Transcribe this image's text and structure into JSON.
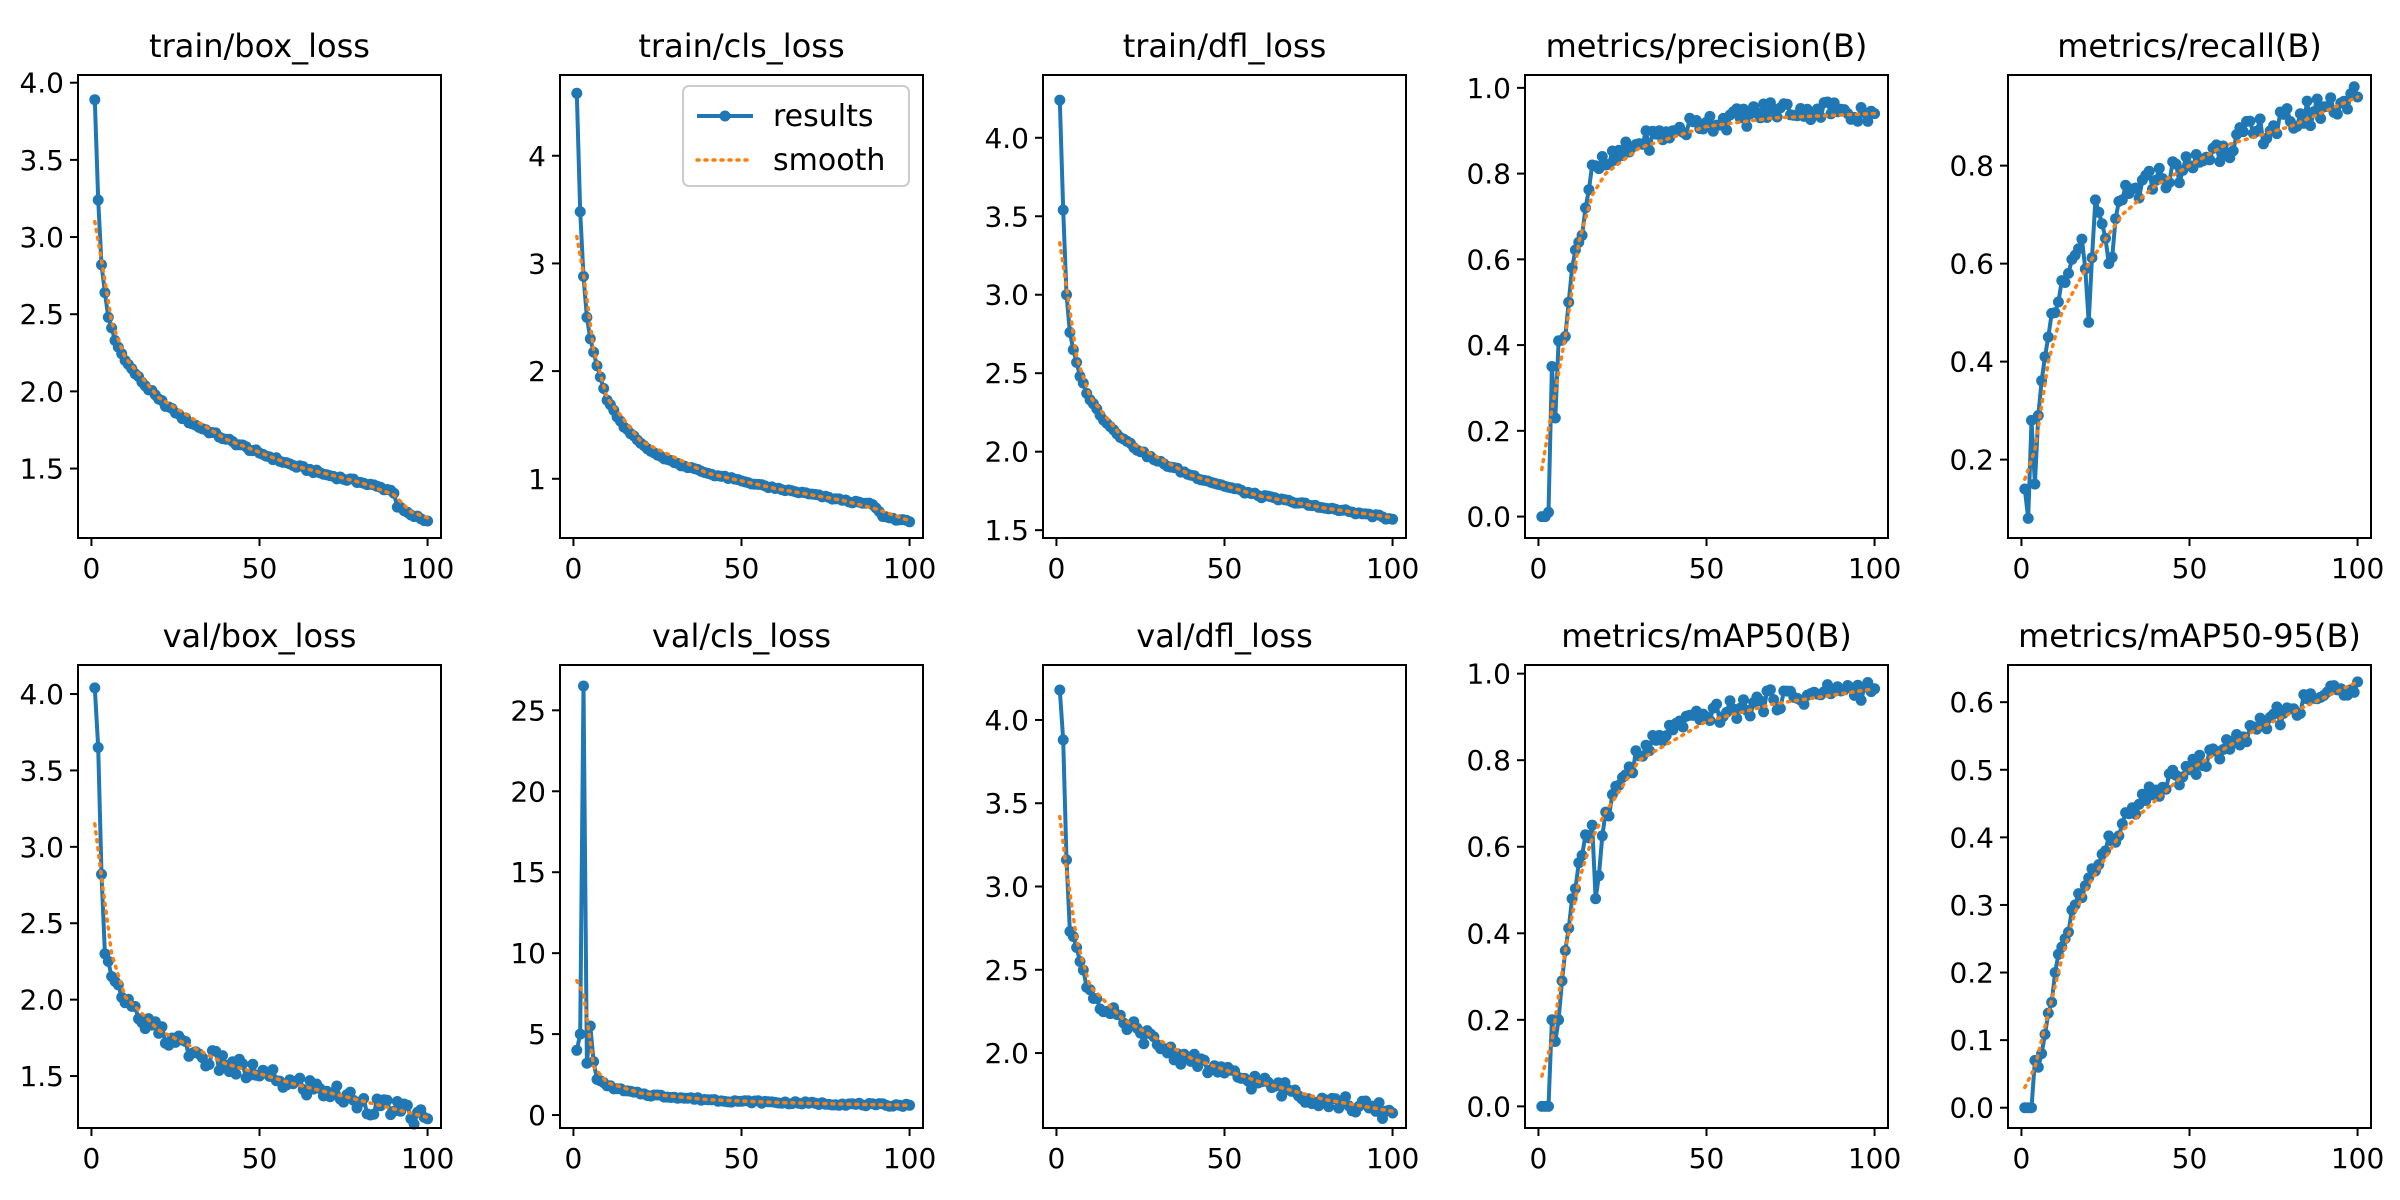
{
  "figure": {
    "legend": {
      "placement": "upper-right of panel 2",
      "entries": [
        "results",
        "smooth"
      ]
    },
    "colors": {
      "results": "#1f77b4",
      "smooth": "#ff7f0e"
    }
  },
  "chart_data": [
    {
      "type": "line",
      "title": "train/box_loss",
      "xlim": [
        -4,
        104
      ],
      "ylim": [
        1.05,
        4.05
      ],
      "xticks": [
        0,
        50,
        100
      ],
      "yticks": [
        1.5,
        2.0,
        2.5,
        3.0,
        3.5,
        4.0
      ],
      "ytick_labels": [
        "1.5",
        "2.0",
        "2.5",
        "3.0",
        "3.5",
        "4.0"
      ],
      "anchors": [
        [
          1,
          3.89
        ],
        [
          2,
          3.24
        ],
        [
          3,
          2.82
        ],
        [
          4,
          2.64
        ],
        [
          5,
          2.48
        ],
        [
          7,
          2.33
        ],
        [
          10,
          2.2
        ],
        [
          15,
          2.06
        ],
        [
          20,
          1.95
        ],
        [
          25,
          1.86
        ],
        [
          30,
          1.79
        ],
        [
          40,
          1.69
        ],
        [
          50,
          1.6
        ],
        [
          60,
          1.52
        ],
        [
          70,
          1.46
        ],
        [
          80,
          1.41
        ],
        [
          89,
          1.36
        ],
        [
          90,
          1.34
        ],
        [
          91,
          1.25
        ],
        [
          95,
          1.2
        ],
        [
          100,
          1.16
        ]
      ],
      "noise": 0.012,
      "smooth": [
        [
          1,
          3.1
        ],
        [
          3,
          2.85
        ],
        [
          6,
          2.45
        ],
        [
          10,
          2.22
        ],
        [
          20,
          1.96
        ],
        [
          40,
          1.69
        ],
        [
          60,
          1.52
        ],
        [
          80,
          1.41
        ],
        [
          90,
          1.33
        ],
        [
          95,
          1.22
        ],
        [
          100,
          1.18
        ]
      ]
    },
    {
      "type": "line",
      "title": "train/cls_loss",
      "xlim": [
        -4,
        104
      ],
      "ylim": [
        0.45,
        4.75
      ],
      "xticks": [
        0,
        50,
        100
      ],
      "yticks": [
        1,
        2,
        3,
        4
      ],
      "ytick_labels": [
        "1",
        "2",
        "3",
        "4"
      ],
      "anchors": [
        [
          1,
          4.58
        ],
        [
          2,
          3.48
        ],
        [
          3,
          2.88
        ],
        [
          4,
          2.5
        ],
        [
          5,
          2.3
        ],
        [
          7,
          2.05
        ],
        [
          10,
          1.73
        ],
        [
          15,
          1.48
        ],
        [
          20,
          1.33
        ],
        [
          25,
          1.22
        ],
        [
          30,
          1.15
        ],
        [
          40,
          1.05
        ],
        [
          50,
          0.98
        ],
        [
          60,
          0.91
        ],
        [
          70,
          0.86
        ],
        [
          80,
          0.8
        ],
        [
          89,
          0.76
        ],
        [
          90,
          0.73
        ],
        [
          92,
          0.65
        ],
        [
          100,
          0.6
        ]
      ],
      "noise": 0.01,
      "smooth": [
        [
          1,
          3.25
        ],
        [
          3,
          2.9
        ],
        [
          6,
          2.2
        ],
        [
          10,
          1.75
        ],
        [
          20,
          1.35
        ],
        [
          40,
          1.05
        ],
        [
          60,
          0.91
        ],
        [
          80,
          0.8
        ],
        [
          90,
          0.72
        ],
        [
          100,
          0.61
        ]
      ]
    },
    {
      "type": "line",
      "title": "train/dfl_loss",
      "xlim": [
        -4,
        104
      ],
      "ylim": [
        1.45,
        4.4
      ],
      "xticks": [
        0,
        50,
        100
      ],
      "yticks": [
        1.5,
        2.0,
        2.5,
        3.0,
        3.5,
        4.0
      ],
      "ytick_labels": [
        "1.5",
        "2.0",
        "2.5",
        "3.0",
        "3.5",
        "4.0"
      ],
      "anchors": [
        [
          1,
          4.24
        ],
        [
          2,
          3.54
        ],
        [
          3,
          3.0
        ],
        [
          4,
          2.76
        ],
        [
          5,
          2.65
        ],
        [
          7,
          2.48
        ],
        [
          10,
          2.33
        ],
        [
          15,
          2.18
        ],
        [
          20,
          2.08
        ],
        [
          25,
          2.0
        ],
        [
          30,
          1.94
        ],
        [
          40,
          1.85
        ],
        [
          50,
          1.78
        ],
        [
          60,
          1.72
        ],
        [
          70,
          1.68
        ],
        [
          80,
          1.64
        ],
        [
          90,
          1.61
        ],
        [
          100,
          1.57
        ]
      ],
      "noise": 0.01,
      "smooth": [
        [
          1,
          3.33
        ],
        [
          3,
          3.05
        ],
        [
          6,
          2.6
        ],
        [
          10,
          2.35
        ],
        [
          20,
          2.08
        ],
        [
          40,
          1.85
        ],
        [
          60,
          1.72
        ],
        [
          80,
          1.64
        ],
        [
          100,
          1.58
        ]
      ]
    },
    {
      "type": "line",
      "title": "metrics/precision(B)",
      "xlim": [
        -4,
        104
      ],
      "ylim": [
        -0.05,
        1.03
      ],
      "xticks": [
        0,
        50,
        100
      ],
      "yticks": [
        0.0,
        0.2,
        0.4,
        0.6,
        0.8,
        1.0
      ],
      "ytick_labels": [
        "0.0",
        "0.2",
        "0.4",
        "0.6",
        "0.8",
        "1.0"
      ],
      "anchors": [
        [
          1,
          0.0
        ],
        [
          2,
          0.0
        ],
        [
          3,
          0.01
        ],
        [
          4,
          0.35
        ],
        [
          5,
          0.23
        ],
        [
          6,
          0.41
        ],
        [
          8,
          0.42
        ],
        [
          10,
          0.58
        ],
        [
          12,
          0.64
        ],
        [
          14,
          0.72
        ],
        [
          16,
          0.82
        ],
        [
          20,
          0.82
        ],
        [
          30,
          0.87
        ],
        [
          40,
          0.9
        ],
        [
          50,
          0.92
        ],
        [
          60,
          0.93
        ],
        [
          70,
          0.95
        ],
        [
          80,
          0.95
        ],
        [
          90,
          0.95
        ],
        [
          100,
          0.94
        ]
      ],
      "noise": 0.025,
      "smooth": [
        [
          1,
          0.11
        ],
        [
          4,
          0.25
        ],
        [
          8,
          0.42
        ],
        [
          12,
          0.64
        ],
        [
          16,
          0.75
        ],
        [
          20,
          0.8
        ],
        [
          30,
          0.86
        ],
        [
          50,
          0.91
        ],
        [
          70,
          0.93
        ],
        [
          100,
          0.94
        ]
      ]
    },
    {
      "type": "line",
      "title": "metrics/recall(B)",
      "xlim": [
        -4,
        104
      ],
      "ylim": [
        0.04,
        0.985
      ],
      "xticks": [
        0,
        50,
        100
      ],
      "yticks": [
        0.2,
        0.4,
        0.6,
        0.8
      ],
      "ytick_labels": [
        "0.2",
        "0.4",
        "0.6",
        "0.8"
      ],
      "anchors": [
        [
          1,
          0.14
        ],
        [
          2,
          0.08
        ],
        [
          3,
          0.28
        ],
        [
          4,
          0.15
        ],
        [
          5,
          0.29
        ],
        [
          7,
          0.41
        ],
        [
          10,
          0.5
        ],
        [
          14,
          0.58
        ],
        [
          18,
          0.65
        ],
        [
          20,
          0.48
        ],
        [
          22,
          0.73
        ],
        [
          26,
          0.6
        ],
        [
          30,
          0.73
        ],
        [
          40,
          0.77
        ],
        [
          50,
          0.8
        ],
        [
          60,
          0.84
        ],
        [
          70,
          0.87
        ],
        [
          80,
          0.89
        ],
        [
          90,
          0.92
        ],
        [
          100,
          0.94
        ]
      ],
      "noise": 0.03,
      "smooth": [
        [
          1,
          0.16
        ],
        [
          4,
          0.22
        ],
        [
          8,
          0.4
        ],
        [
          12,
          0.5
        ],
        [
          20,
          0.6
        ],
        [
          30,
          0.7
        ],
        [
          40,
          0.76
        ],
        [
          60,
          0.84
        ],
        [
          80,
          0.88
        ],
        [
          100,
          0.94
        ]
      ]
    },
    {
      "type": "line",
      "title": "val/box_loss",
      "xlim": [
        -4,
        104
      ],
      "ylim": [
        1.16,
        4.19
      ],
      "xticks": [
        0,
        50,
        100
      ],
      "yticks": [
        1.5,
        2.0,
        2.5,
        3.0,
        3.5,
        4.0
      ],
      "ytick_labels": [
        "1.5",
        "2.0",
        "2.5",
        "3.0",
        "3.5",
        "4.0"
      ],
      "anchors": [
        [
          1,
          4.04
        ],
        [
          2,
          3.65
        ],
        [
          3,
          2.82
        ],
        [
          4,
          2.3
        ],
        [
          5,
          2.25
        ],
        [
          7,
          2.12
        ],
        [
          10,
          1.98
        ],
        [
          15,
          1.85
        ],
        [
          20,
          1.78
        ],
        [
          25,
          1.72
        ],
        [
          30,
          1.65
        ],
        [
          40,
          1.57
        ],
        [
          50,
          1.5
        ],
        [
          60,
          1.45
        ],
        [
          70,
          1.4
        ],
        [
          80,
          1.33
        ],
        [
          90,
          1.27
        ],
        [
          100,
          1.22
        ]
      ],
      "noise": 0.07,
      "smooth": [
        [
          1,
          3.15
        ],
        [
          3,
          2.8
        ],
        [
          6,
          2.3
        ],
        [
          10,
          2.02
        ],
        [
          20,
          1.8
        ],
        [
          40,
          1.58
        ],
        [
          60,
          1.45
        ],
        [
          80,
          1.34
        ],
        [
          100,
          1.23
        ]
      ]
    },
    {
      "type": "line",
      "title": "val/cls_loss",
      "xlim": [
        -4,
        104
      ],
      "ylim": [
        -0.8,
        27.8
      ],
      "xticks": [
        0,
        50,
        100
      ],
      "yticks": [
        0,
        5,
        10,
        15,
        20,
        25
      ],
      "ytick_labels": [
        "0",
        "5",
        "10",
        "15",
        "20",
        "25"
      ],
      "anchors": [
        [
          1,
          4.0
        ],
        [
          2,
          5.0
        ],
        [
          3,
          26.5
        ],
        [
          4,
          3.2
        ],
        [
          5,
          5.5
        ],
        [
          6,
          3.3
        ],
        [
          7,
          2.2
        ],
        [
          10,
          1.8
        ],
        [
          15,
          1.5
        ],
        [
          20,
          1.3
        ],
        [
          30,
          1.1
        ],
        [
          40,
          0.95
        ],
        [
          50,
          0.85
        ],
        [
          60,
          0.78
        ],
        [
          70,
          0.73
        ],
        [
          80,
          0.68
        ],
        [
          90,
          0.63
        ],
        [
          100,
          0.6
        ]
      ],
      "noise": 0.08,
      "smooth": [
        [
          1,
          8.3
        ],
        [
          3,
          7.5
        ],
        [
          6,
          3.0
        ],
        [
          10,
          2.0
        ],
        [
          20,
          1.35
        ],
        [
          40,
          0.95
        ],
        [
          60,
          0.78
        ],
        [
          80,
          0.68
        ],
        [
          100,
          0.6
        ]
      ]
    },
    {
      "type": "line",
      "title": "val/dfl_loss",
      "xlim": [
        -4,
        104
      ],
      "ylim": [
        1.55,
        4.33
      ],
      "xticks": [
        0,
        50,
        100
      ],
      "yticks": [
        2.0,
        2.5,
        3.0,
        3.5,
        4.0
      ],
      "ytick_labels": [
        "2.0",
        "2.5",
        "3.0",
        "3.5",
        "4.0"
      ],
      "anchors": [
        [
          1,
          4.18
        ],
        [
          2,
          3.88
        ],
        [
          3,
          3.16
        ],
        [
          4,
          2.73
        ],
        [
          5,
          2.7
        ],
        [
          7,
          2.55
        ],
        [
          10,
          2.38
        ],
        [
          15,
          2.25
        ],
        [
          20,
          2.18
        ],
        [
          25,
          2.12
        ],
        [
          30,
          2.05
        ],
        [
          40,
          1.95
        ],
        [
          50,
          1.88
        ],
        [
          60,
          1.82
        ],
        [
          70,
          1.77
        ],
        [
          80,
          1.72
        ],
        [
          90,
          1.68
        ],
        [
          100,
          1.64
        ]
      ],
      "noise": 0.05,
      "smooth": [
        [
          1,
          3.42
        ],
        [
          3,
          3.1
        ],
        [
          6,
          2.68
        ],
        [
          10,
          2.4
        ],
        [
          20,
          2.2
        ],
        [
          40,
          1.97
        ],
        [
          60,
          1.83
        ],
        [
          80,
          1.72
        ],
        [
          100,
          1.65
        ]
      ]
    },
    {
      "type": "line",
      "title": "metrics/mAP50(B)",
      "xlim": [
        -4,
        104
      ],
      "ylim": [
        -0.05,
        1.02
      ],
      "xticks": [
        0,
        50,
        100
      ],
      "yticks": [
        0.0,
        0.2,
        0.4,
        0.6,
        0.8,
        1.0
      ],
      "ytick_labels": [
        "0.0",
        "0.2",
        "0.4",
        "0.6",
        "0.8",
        "1.0"
      ],
      "anchors": [
        [
          1,
          0.0
        ],
        [
          2,
          0.0
        ],
        [
          3,
          0.0
        ],
        [
          4,
          0.2
        ],
        [
          5,
          0.15
        ],
        [
          6,
          0.2
        ],
        [
          7,
          0.29
        ],
        [
          8,
          0.36
        ],
        [
          10,
          0.48
        ],
        [
          13,
          0.58
        ],
        [
          16,
          0.65
        ],
        [
          17,
          0.48
        ],
        [
          20,
          0.68
        ],
        [
          25,
          0.76
        ],
        [
          30,
          0.81
        ],
        [
          40,
          0.87
        ],
        [
          50,
          0.9
        ],
        [
          60,
          0.92
        ],
        [
          70,
          0.94
        ],
        [
          80,
          0.95
        ],
        [
          90,
          0.96
        ],
        [
          100,
          0.965
        ]
      ],
      "noise": 0.025,
      "smooth": [
        [
          1,
          0.07
        ],
        [
          4,
          0.15
        ],
        [
          8,
          0.36
        ],
        [
          12,
          0.52
        ],
        [
          16,
          0.62
        ],
        [
          20,
          0.68
        ],
        [
          30,
          0.8
        ],
        [
          50,
          0.89
        ],
        [
          70,
          0.93
        ],
        [
          100,
          0.965
        ]
      ]
    },
    {
      "type": "line",
      "title": "metrics/mAP50-95(B)",
      "xlim": [
        -4,
        104
      ],
      "ylim": [
        -0.03,
        0.655
      ],
      "xticks": [
        0,
        50,
        100
      ],
      "yticks": [
        0.0,
        0.1,
        0.2,
        0.3,
        0.4,
        0.5,
        0.6
      ],
      "ytick_labels": [
        "0.0",
        "0.1",
        "0.2",
        "0.3",
        "0.4",
        "0.5",
        "0.6"
      ],
      "anchors": [
        [
          1,
          0.0
        ],
        [
          2,
          0.0
        ],
        [
          3,
          0.0
        ],
        [
          4,
          0.07
        ],
        [
          5,
          0.06
        ],
        [
          6,
          0.08
        ],
        [
          8,
          0.14
        ],
        [
          10,
          0.2
        ],
        [
          13,
          0.25
        ],
        [
          16,
          0.3
        ],
        [
          20,
          0.34
        ],
        [
          25,
          0.38
        ],
        [
          30,
          0.42
        ],
        [
          40,
          0.47
        ],
        [
          50,
          0.5
        ],
        [
          60,
          0.53
        ],
        [
          70,
          0.56
        ],
        [
          80,
          0.59
        ],
        [
          90,
          0.61
        ],
        [
          100,
          0.63
        ]
      ],
      "noise": 0.015,
      "smooth": [
        [
          1,
          0.03
        ],
        [
          4,
          0.06
        ],
        [
          8,
          0.14
        ],
        [
          12,
          0.22
        ],
        [
          16,
          0.29
        ],
        [
          20,
          0.33
        ],
        [
          30,
          0.41
        ],
        [
          50,
          0.5
        ],
        [
          70,
          0.56
        ],
        [
          100,
          0.63
        ]
      ]
    }
  ]
}
